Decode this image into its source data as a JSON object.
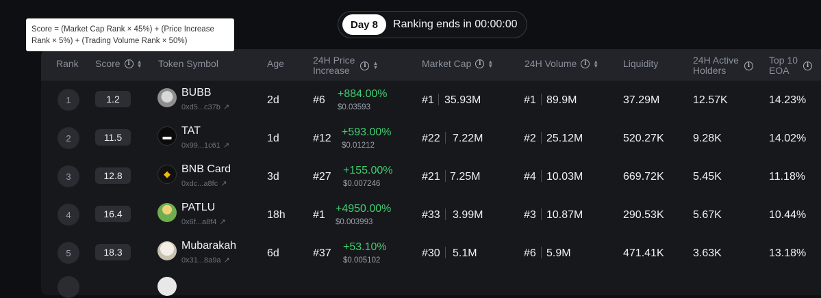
{
  "banner": {
    "day": "Day 8",
    "ranking_text": "Ranking ends in 00:00:00"
  },
  "tooltip": {
    "line1": "Score = (Market Cap Rank × 45%) + (Price Increase",
    "line2": "Rank × 5%) + (Trading Volume Rank × 50%)"
  },
  "columns": {
    "rank": "Rank",
    "score": "Score",
    "token": "Token Symbol",
    "age": "Age",
    "price_increase_1": "24H Price",
    "price_increase_2": "Increase",
    "market_cap": "Market Cap",
    "volume": "24H Volume",
    "liquidity": "Liquidity",
    "holders_1": "24H Active",
    "holders_2": "Holders",
    "eoa_1": "Top 10",
    "eoa_2": "EOA"
  },
  "rows": [
    {
      "rank": "1",
      "score": "1.2",
      "name": "BUBB",
      "addr": "0xd5...c37b",
      "age": "2d",
      "price_rank": "#6",
      "pct": "+884.00%",
      "price": "$0.03593",
      "mc_rank": "#1",
      "mc": "35.93M",
      "vol_rank": "#1",
      "vol": "89.9M",
      "liquidity": "37.29M",
      "holders": "12.57K",
      "eoa": "14.23%"
    },
    {
      "rank": "2",
      "score": "11.5",
      "name": "TAT",
      "addr": "0x99...1c61",
      "age": "1d",
      "price_rank": "#12",
      "pct": "+593.00%",
      "price": "$0.01212",
      "mc_rank": "#22",
      "mc": "7.22M",
      "vol_rank": "#2",
      "vol": "25.12M",
      "liquidity": "520.27K",
      "holders": "9.28K",
      "eoa": "14.02%"
    },
    {
      "rank": "3",
      "score": "12.8",
      "name": "BNB Card",
      "addr": "0xdc...a8fc",
      "age": "3d",
      "price_rank": "#27",
      "pct": "+155.00%",
      "price": "$0.007246",
      "mc_rank": "#21",
      "mc": "7.25M",
      "vol_rank": "#4",
      "vol": "10.03M",
      "liquidity": "669.72K",
      "holders": "5.45K",
      "eoa": "11.18%"
    },
    {
      "rank": "4",
      "score": "16.4",
      "name": "PATLU",
      "addr": "0x6f...a8f4",
      "age": "18h",
      "price_rank": "#1",
      "pct": "+4950.00%",
      "price": "$0.003993",
      "mc_rank": "#33",
      "mc": "3.99M",
      "vol_rank": "#3",
      "vol": "10.87M",
      "liquidity": "290.53K",
      "holders": "5.67K",
      "eoa": "10.44%"
    },
    {
      "rank": "5",
      "score": "18.3",
      "name": "Mubarakah",
      "addr": "0x31...8a9a",
      "age": "6d",
      "price_rank": "#37",
      "pct": "+53.10%",
      "price": "$0.005102",
      "mc_rank": "#30",
      "mc": "5.1M",
      "vol_rank": "#6",
      "vol": "5.9M",
      "liquidity": "471.41K",
      "holders": "3.63K",
      "eoa": "13.18%"
    }
  ],
  "colors": {
    "positive": "#3fcf70",
    "panel": "#17181c",
    "header": "#22242a"
  }
}
